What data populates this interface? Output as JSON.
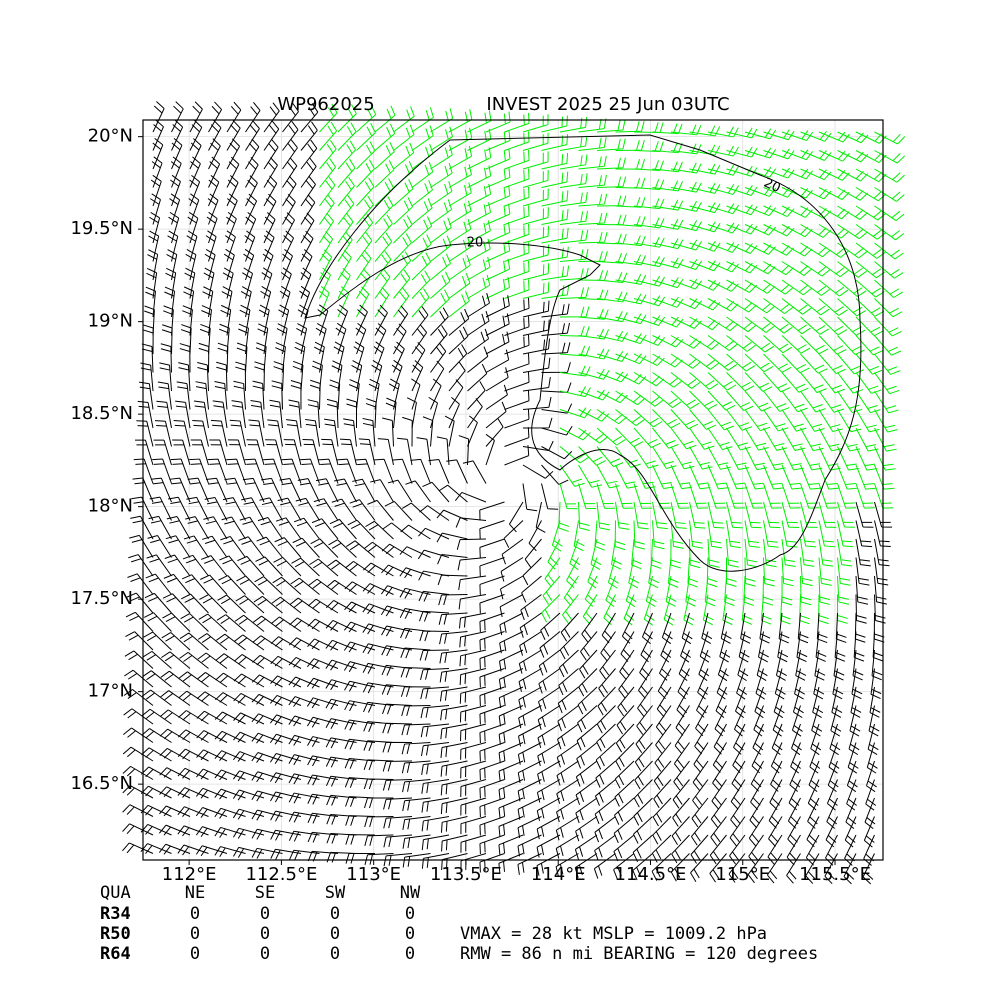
{
  "chart_data": {
    "type": "wind-barb-map",
    "title_left": "WP962025",
    "title_right": "INVEST 2025 25 Jun 03UTC",
    "xlim": [
      111.75,
      115.76
    ],
    "ylim": [
      16.09,
      20.09
    ],
    "xticks": [
      {
        "value": 112,
        "label": "112°E"
      },
      {
        "value": 112.5,
        "label": "112.5°E"
      },
      {
        "value": 113,
        "label": "113°E"
      },
      {
        "value": 113.5,
        "label": "113.5°E"
      },
      {
        "value": 114,
        "label": "114°E"
      },
      {
        "value": 114.5,
        "label": "114.5°E"
      },
      {
        "value": 115,
        "label": "115°E"
      },
      {
        "value": 115.5,
        "label": "115.5°E"
      }
    ],
    "yticks": [
      {
        "value": 16.5,
        "label": "16.5°N"
      },
      {
        "value": 17,
        "label": "17°N"
      },
      {
        "value": 17.5,
        "label": "17.5°N"
      },
      {
        "value": 18,
        "label": "18°N"
      },
      {
        "value": 18.5,
        "label": "18.5°N"
      },
      {
        "value": 19,
        "label": "19°N"
      },
      {
        "value": 19.5,
        "label": "19.5°N"
      },
      {
        "value": 20,
        "label": "20°N"
      }
    ],
    "grid": true,
    "contour_labels": [
      "20",
      "20"
    ],
    "colors": {
      "strong": "#00ee00",
      "weak": "#000000"
    },
    "table": {
      "header": [
        "QUA",
        "NE",
        "SE",
        "SW",
        "NW"
      ],
      "rows": [
        [
          "R34",
          "0",
          "0",
          "0",
          "0"
        ],
        [
          "R50",
          "0",
          "0",
          "0",
          "0"
        ],
        [
          "R64",
          "0",
          "0",
          "0",
          "0"
        ]
      ]
    },
    "info": [
      "VMAX =  28 kt MSLP = 1009.2 hPa",
      "RMW =  86 n mi BEARING = 120 degrees"
    ]
  }
}
